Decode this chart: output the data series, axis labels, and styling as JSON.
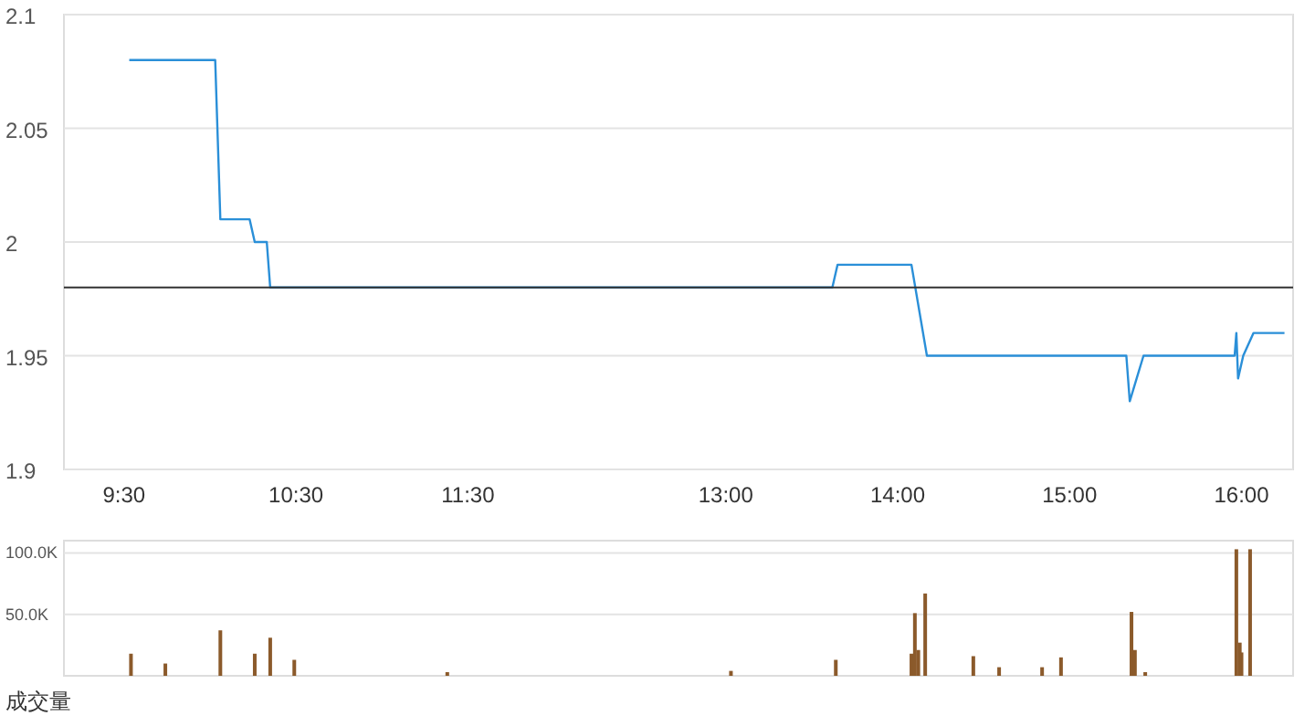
{
  "chart_data": [
    {
      "type": "line",
      "x": [
        9.53,
        10.03,
        10.06,
        10.23,
        10.26,
        10.33,
        10.35,
        13.62,
        13.65,
        14.08,
        14.17,
        15.33,
        15.35,
        15.39,
        15.43,
        15.96,
        15.97,
        15.98,
        16.01,
        16.07,
        16.25
      ],
      "series": [
        {
          "color": "#2a8fd8",
          "values": [
            2.08,
            2.08,
            2.01,
            2.01,
            2.0,
            2.0,
            1.98,
            1.98,
            1.99,
            1.99,
            1.95,
            1.95,
            1.93,
            1.94,
            1.95,
            1.95,
            1.96,
            1.94,
            1.95,
            1.96,
            1.96
          ]
        }
      ],
      "xlim": [
        9.15,
        16.3
      ],
      "xticks": [
        {
          "value": 9.5,
          "label": "9:30"
        },
        {
          "value": 10.5,
          "label": "10:30"
        },
        {
          "value": 11.5,
          "label": "11:30"
        },
        {
          "value": 13,
          "label": "13:00"
        },
        {
          "value": 14,
          "label": "14:00"
        },
        {
          "value": 15,
          "label": "15:00"
        },
        {
          "value": 16,
          "label": "16:00"
        }
      ],
      "ylim": [
        1.9,
        2.1
      ],
      "yticks": [
        1.9,
        1.95,
        2,
        2.05,
        2.1
      ],
      "grid": "y",
      "ref_lines": [
        {
          "axis": "y",
          "value": 1.98,
          "color": "#333333"
        }
      ]
    },
    {
      "type": "bar",
      "x": [
        9.54,
        9.74,
        10.06,
        10.26,
        10.35,
        10.49,
        11.38,
        13.03,
        13.64,
        14.08,
        14.1,
        14.12,
        14.16,
        14.44,
        14.59,
        14.84,
        14.95,
        15.36,
        15.38,
        15.44,
        15.97,
        15.99,
        16.0,
        16.05
      ],
      "series": [
        {
          "color": "#8b5a2b",
          "values": [
            18000,
            10000,
            37000,
            18000,
            31000,
            13000,
            3000,
            4000,
            13000,
            18000,
            51000,
            21000,
            67000,
            16000,
            7000,
            7000,
            15000,
            52000,
            21000,
            3000,
            103000,
            27000,
            19000,
            103000
          ]
        }
      ],
      "xlim": [
        9.15,
        16.3
      ],
      "ylim": [
        0,
        110000
      ],
      "yticks": [
        {
          "value": 50000,
          "label": "50.0K"
        },
        {
          "value": 100000,
          "label": "100.0K"
        }
      ],
      "grid": "y",
      "tick_labels": "y",
      "annotations": [
        "成交量"
      ]
    }
  ]
}
